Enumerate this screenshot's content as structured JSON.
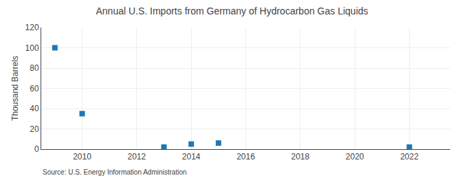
{
  "chart_data": {
    "type": "scatter",
    "title": "Annual U.S. Imports from Germany of Hydrocarbon Gas Liquids",
    "ylabel": "Thousand Barrels",
    "annotations": [
      "Source: U.S. Energy Information Administration"
    ],
    "x": [
      2009,
      2010,
      2013,
      2014,
      2015,
      2022
    ],
    "values": [
      100,
      35,
      2,
      5,
      6,
      2
    ],
    "marker": "square",
    "xlim": [
      2008.5,
      2023.5
    ],
    "xticks": [
      2010,
      2012,
      2014,
      2016,
      2018,
      2020,
      2022
    ],
    "ylim": [
      0,
      120
    ],
    "yticks": [
      0,
      20,
      40,
      60,
      80,
      100,
      120
    ],
    "grid": true
  }
}
